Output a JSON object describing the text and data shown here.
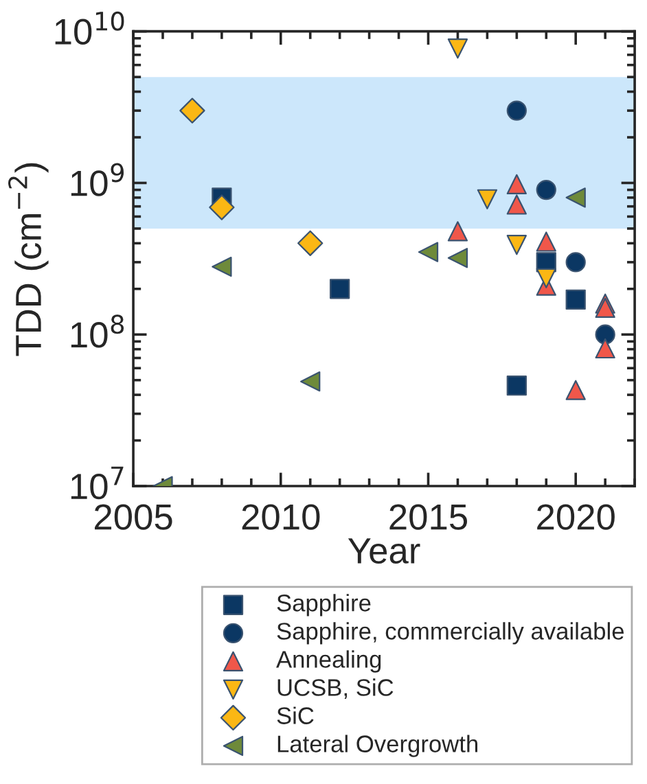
{
  "chart_data": {
    "type": "scatter",
    "xlabel": "Year",
    "ylabel": "TDD (cm$^{−2}$)",
    "xlim": [
      2005,
      2022
    ],
    "xticks": [
      2005,
      2010,
      2015,
      2020
    ],
    "ylim": [
      10000000,
      10000000000
    ],
    "yticks": [
      {
        "value": 10000000,
        "label": "10$^{7}$"
      },
      {
        "value": 100000000,
        "label": "10$^{8}$"
      },
      {
        "value": 1000000000,
        "label": "10$^{9}$"
      },
      {
        "value": 10000000000,
        "label": "10$^{10}$"
      }
    ],
    "log": "y",
    "grid": false,
    "legend": "bottom",
    "bands": [
      {
        "axis": "y",
        "from": 500000000,
        "to": 5000000000,
        "color": "#cce7fb"
      }
    ],
    "series": [
      {
        "name": "Sapphire",
        "color": "#0b3763",
        "marker": "square",
        "x": [
          2008,
          2012,
          2018,
          2019,
          2020
        ],
        "values": [
          800000000,
          200000000,
          46000000,
          300000000,
          170000000
        ]
      },
      {
        "name": "Sapphire, commercially available",
        "color": "#0b3763",
        "marker": "circle",
        "x": [
          2018,
          2019,
          2020,
          2021
        ],
        "values": [
          3000000000,
          900000000,
          300000000,
          100000000
        ]
      },
      {
        "name": "Annealing",
        "color": "#f0574a",
        "marker": "triangle",
        "x": [
          2016,
          2018,
          2018,
          2019,
          2019,
          2020,
          2021,
          2021,
          2021
        ],
        "values": [
          480000000,
          980000000,
          720000000,
          410000000,
          210000000,
          43000000,
          160000000,
          150000000,
          81000000
        ]
      },
      {
        "name": "UCSB, SiC",
        "color": "#fbb714",
        "marker": "triangle_down",
        "x": [
          2016,
          2017,
          2018,
          2019
        ],
        "values": [
          7700000000,
          780000000,
          390000000,
          235000000
        ]
      },
      {
        "name": "SiC",
        "color": "#fbb714",
        "marker": "diamond",
        "x": [
          2007,
          2008,
          2011
        ],
        "values": [
          3000000000,
          690000000,
          400000000
        ]
      },
      {
        "name": "Lateral Overgrowth",
        "color": "#6e8a3a",
        "marker": "triangle_left",
        "x": [
          2006,
          2008,
          2011,
          2015,
          2016,
          2020
        ],
        "values": [
          10000000,
          280000000,
          49000000,
          350000000,
          320000000,
          800000000
        ]
      }
    ]
  }
}
